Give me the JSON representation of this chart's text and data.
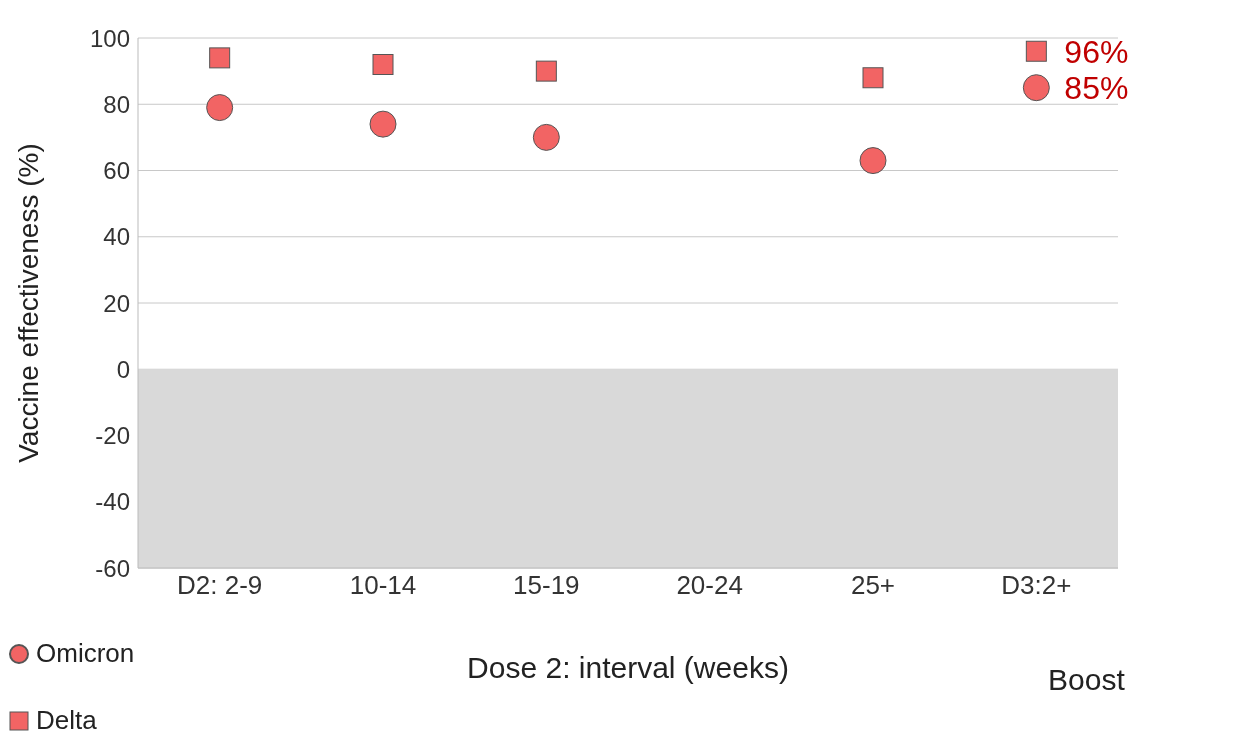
{
  "chart_data": {
    "type": "scatter",
    "categories": [
      "D2: 2-9",
      "10-14",
      "15-19",
      "20-24",
      "25+",
      "D3:2+"
    ],
    "xlabel": "Dose 2: interval (weeks)",
    "ylabel": "Vaccine effectiveness (%)",
    "series": [
      {
        "name": "Omicron",
        "color": "#f26464",
        "marker": "circle",
        "values": [
          79,
          74,
          70,
          null,
          63,
          85
        ]
      },
      {
        "name": "Delta",
        "color": "#f26464",
        "marker": "square",
        "values": [
          94,
          92,
          90,
          null,
          88,
          96
        ]
      }
    ],
    "ylim": [
      -60,
      100
    ],
    "yticks": [
      -60,
      -40,
      -20,
      0,
      20,
      40,
      60,
      80,
      100
    ],
    "grid": "y",
    "legend": "bottom left",
    "bands": [
      {
        "axis": "y",
        "from": -60,
        "to": 0,
        "color": "#d9d9d9"
      }
    ],
    "annotations": [
      {
        "text": "96%",
        "x": "D3:2+",
        "y": 96
      },
      {
        "text": "85%",
        "x": "D3:2+",
        "y": 85
      },
      "Boost"
    ]
  }
}
